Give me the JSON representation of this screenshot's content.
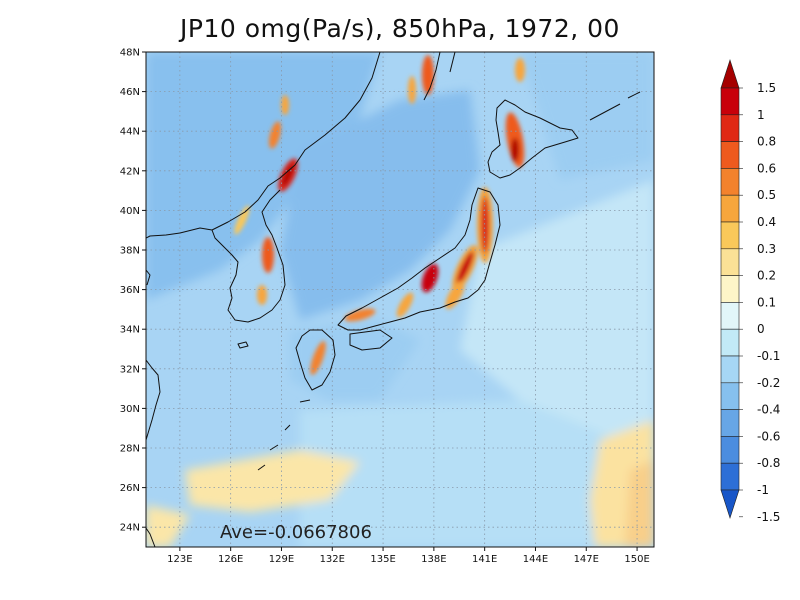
{
  "title": "JP10 omg(Pa/s), 850hPa, 1972, 00",
  "average_label": "Ave=-0.0667806",
  "chart_data": {
    "type": "heatmap",
    "title": "JP10 omg(Pa/s), 850hPa, 1972, 00",
    "variable": "omg",
    "units": "Pa/s",
    "level": "850hPa",
    "year": "1972",
    "hour": "00",
    "average": -0.0667806,
    "xlim": [
      121,
      151
    ],
    "ylim": [
      23,
      48
    ],
    "x_ticks": [
      123,
      126,
      129,
      132,
      135,
      138,
      141,
      144,
      147,
      150
    ],
    "x_tick_labels": [
      "123E",
      "126E",
      "129E",
      "132E",
      "135E",
      "138E",
      "141E",
      "144E",
      "147E",
      "150E"
    ],
    "y_ticks": [
      24,
      26,
      28,
      30,
      32,
      34,
      36,
      38,
      40,
      42,
      44,
      46,
      48
    ],
    "y_tick_labels": [
      "24N",
      "26N",
      "28N",
      "30N",
      "32N",
      "34N",
      "36N",
      "38N",
      "40N",
      "42N",
      "44N",
      "46N",
      "48N"
    ],
    "grid": true,
    "colorbar": {
      "labels": [
        "1.5",
        "1",
        "0.8",
        "0.6",
        "0.5",
        "0.4",
        "0.3",
        "0.2",
        "0.1",
        "0",
        "-0.1",
        "-0.2",
        "-0.4",
        "-0.6",
        "-0.8",
        "-1",
        "-1.5"
      ],
      "colors": [
        "#a50000",
        "#c8000a",
        "#e02814",
        "#ee5a1e",
        "#f3822d",
        "#f7a63c",
        "#f9c85a",
        "#fbe196",
        "#fdf5c8",
        "#e2f6f9",
        "#c2eaf7",
        "#a6d6f4",
        "#86c0ee",
        "#67a6e6",
        "#4b8ddf",
        "#2d6fd6",
        "#1856c8"
      ]
    }
  }
}
